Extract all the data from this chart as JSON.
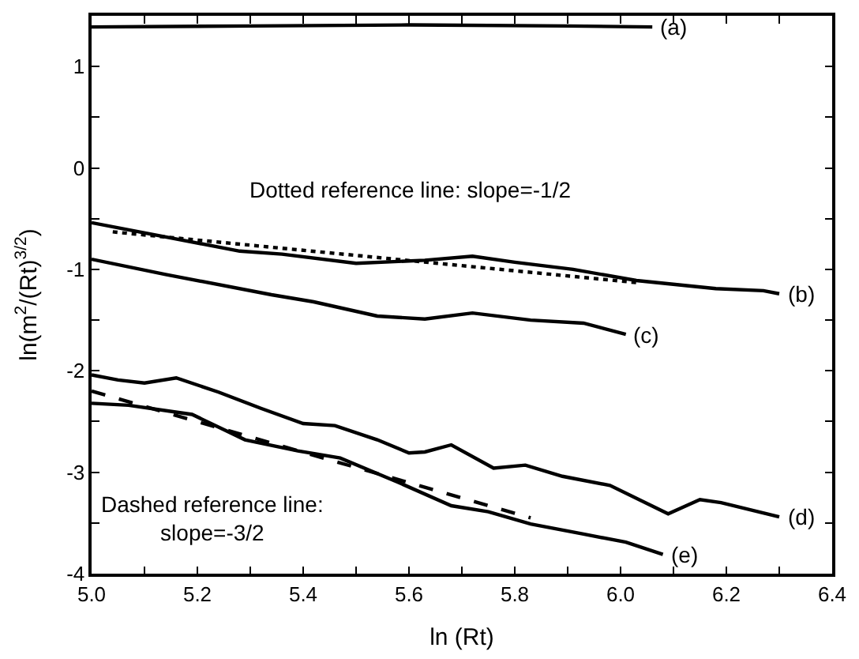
{
  "chart_data": {
    "type": "line",
    "xlabel": "ln (Rt)",
    "ylabel": "ln(m$^{2}$/(Rt)$^{3/2}$)",
    "xlim": [
      5.0,
      6.4
    ],
    "ylim": [
      -4,
      1.5
    ],
    "xticks": [
      {
        "value": 5.0,
        "label": "5.0"
      },
      {
        "value": 5.1,
        "label": null
      },
      {
        "value": 5.2,
        "label": "5.2"
      },
      {
        "value": 5.3,
        "label": null
      },
      {
        "value": 5.4,
        "label": "5.4"
      },
      {
        "value": 5.5,
        "label": null
      },
      {
        "value": 5.6,
        "label": "5.6"
      },
      {
        "value": 5.7,
        "label": null
      },
      {
        "value": 5.8,
        "label": "5.8"
      },
      {
        "value": 5.9,
        "label": null
      },
      {
        "value": 6.0,
        "label": "6.0"
      },
      {
        "value": 6.1,
        "label": null
      },
      {
        "value": 6.2,
        "label": "6.2"
      },
      {
        "value": 6.3,
        "label": null
      },
      {
        "value": 6.4,
        "label": "6.4"
      }
    ],
    "yticks": [
      -4,
      {
        "value": -3.5,
        "label": null
      },
      -3,
      {
        "value": -2.5,
        "label": null
      },
      -2,
      {
        "value": -1.5,
        "label": null
      },
      -1,
      {
        "value": -0.5,
        "label": null
      },
      0,
      {
        "value": 0.5,
        "label": null
      },
      1
    ],
    "legend": "right",
    "marker": "none",
    "series": [
      {
        "name": "(a)",
        "color": "#000000",
        "line_style": "solid",
        "x": [
          5.0,
          5.3,
          5.6,
          5.9,
          6.06
        ],
        "values": [
          1.39,
          1.4,
          1.41,
          1.4,
          1.39
        ]
      },
      {
        "name": "(b)",
        "color": "#000000",
        "line_style": "solid",
        "x": [
          5.0,
          5.28,
          5.36,
          5.5,
          5.63,
          5.72,
          5.8,
          5.91,
          6.03,
          6.18,
          6.27,
          6.3
        ],
        "values": [
          -0.54,
          -0.82,
          -0.85,
          -0.94,
          -0.91,
          -0.87,
          -0.93,
          -1.0,
          -1.11,
          -1.19,
          -1.21,
          -1.24
        ]
      },
      {
        "color": "#000000",
        "line_style": "dotted",
        "x": [
          5.04,
          6.03
        ],
        "values": [
          -0.63,
          -1.13
        ]
      },
      {
        "name": "(c)",
        "color": "#000000",
        "line_style": "solid",
        "x": [
          5.0,
          5.14,
          5.34,
          5.42,
          5.54,
          5.63,
          5.72,
          5.83,
          5.93,
          6.01
        ],
        "values": [
          -0.9,
          -1.05,
          -1.25,
          -1.32,
          -1.46,
          -1.49,
          -1.43,
          -1.5,
          -1.53,
          -1.64
        ]
      },
      {
        "name": "(d)",
        "color": "#000000",
        "line_style": "solid",
        "x": [
          5.0,
          5.05,
          5.1,
          5.16,
          5.24,
          5.32,
          5.4,
          5.46,
          5.54,
          5.6,
          5.63,
          5.68,
          5.76,
          5.82,
          5.89,
          5.98,
          6.09,
          6.15,
          6.19,
          6.3
        ],
        "values": [
          -2.04,
          -2.09,
          -2.12,
          -2.07,
          -2.21,
          -2.37,
          -2.52,
          -2.54,
          -2.68,
          -2.81,
          -2.8,
          -2.73,
          -2.96,
          -2.93,
          -3.04,
          -3.13,
          -3.41,
          -3.27,
          -3.3,
          -3.44
        ]
      },
      {
        "name": "(e)",
        "color": "#000000",
        "line_style": "solid",
        "x": [
          5.0,
          5.07,
          5.19,
          5.29,
          5.39,
          5.47,
          5.58,
          5.68,
          5.75,
          5.83,
          5.93,
          6.01,
          6.08
        ],
        "values": [
          -2.32,
          -2.34,
          -2.43,
          -2.68,
          -2.79,
          -2.86,
          -3.1,
          -3.33,
          -3.39,
          -3.51,
          -3.61,
          -3.69,
          -3.81
        ]
      },
      {
        "color": "#000000",
        "line_style": "dashed",
        "x": [
          5.0,
          5.83
        ],
        "values": [
          -2.2,
          -3.45
        ]
      }
    ],
    "annotations": [
      "Dotted reference line: slope=-1/2",
      "Dashed reference line:\nslope=-3/2"
    ]
  }
}
